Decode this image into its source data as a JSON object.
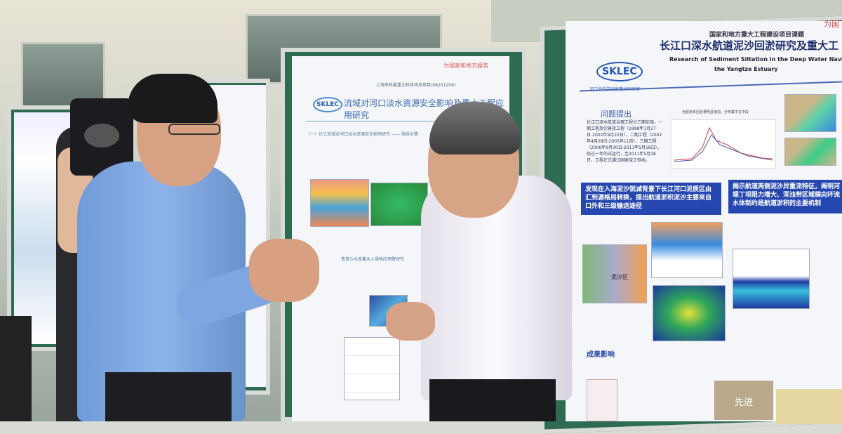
{
  "right_poster": {
    "org_logo": "SKLEC",
    "lab_name": "河口海岸学国家重点实验室",
    "project_label": "国家和地方重大工程建设项目课题",
    "title_zh": "长江口深水航道泥沙回淤研究及重大工",
    "title_en_line1": "Research of Sediment Siltation in the Deep Water Navigation Ch",
    "title_en_line2": "the Yangtze Estuary",
    "corner_tag": "为国",
    "section_heading": "问题提出",
    "section_text": "长江口深水航道治理工程分三期实施，一期工程及完善段工程（1998年1月27日-2002年9月22日），二期工程（2002年4月28日-2005年11月），三期工程（2006年9月30日-2011年5月18日）。经过一年的试运行，至2011年5月18日，工程正式通过国家竣工验收。",
    "chart_caption": "全航道年回淤量明显增加，分布集中在中段",
    "blue_box_1": "发现在入海泥沙锐减背景下长江河口泥质区由汇到源格局转换，提出航道淤积泥沙主要来自口外和三级输运途径",
    "blue_box_2": "揭示航道两侧泥沙异重流特征，阐明河堤丁坝阻力增大、浑浊带区域横向环流水体制约是航道淤积的主要机制",
    "map_label": "泥沙区",
    "results_heading": "成果影响",
    "certificate_text": "先进"
  },
  "middle_poster": {
    "org_logo": "SKLEC",
    "corner_tag": "为国家和地方服务",
    "project_label": "上海市科委重大科技攻关项目(08251206)",
    "title_zh": "流域对河口淡水资源安全影响及重大工程应用研究",
    "section_1": "（一）长江流域对河口淡水资源安全影响研究 —— 持续水情",
    "section_2": "青草沙水库蓄水入侵响应预警研究"
  }
}
